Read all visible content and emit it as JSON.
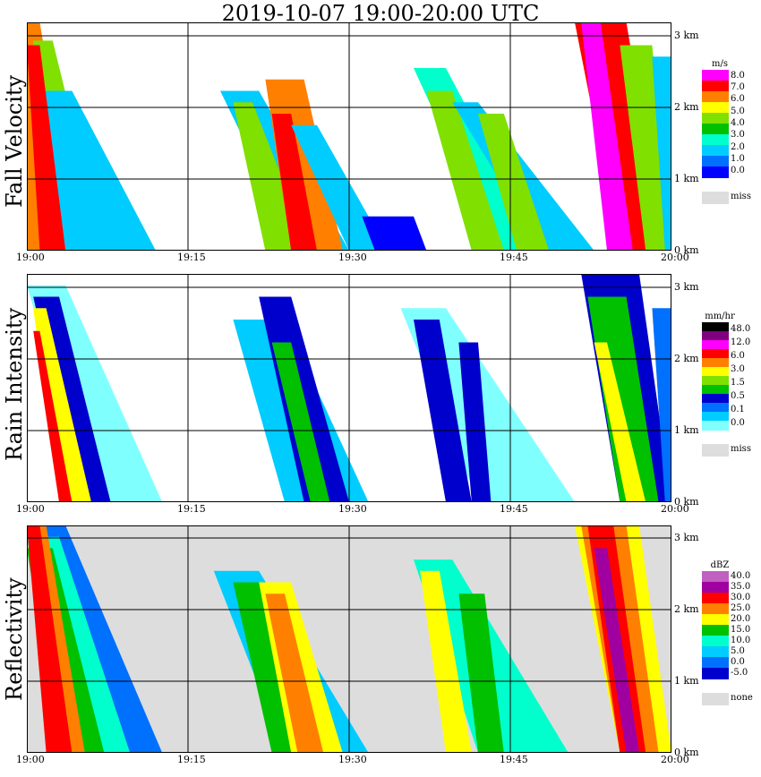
{
  "title": "2019-10-07   19:00-20:00 UTC",
  "chart_data": [
    {
      "type": "heatmap",
      "ylabel": "Fall Velocity",
      "x_ticks": [
        "19:00",
        "19:15",
        "19:30",
        "19:45",
        "20:00"
      ],
      "y_ticks": [
        "0 km",
        "1 km",
        "2 km",
        "3 km"
      ],
      "legend": {
        "unit": "m/s",
        "labels": [
          "8.0",
          "7.0",
          "6.0",
          "5.0",
          "4.0",
          "3.0",
          "2.0",
          "1.0",
          "0.0"
        ],
        "colors": [
          "#ff00ff",
          "#ff0000",
          "#ff8000",
          "#ffff00",
          "#80e000",
          "#00c000",
          "#00ffcc",
          "#00ccff",
          "#0070ff",
          "#0000ff"
        ],
        "miss_label": "miss"
      },
      "background": "#ffffff"
    },
    {
      "type": "heatmap",
      "ylabel": "Rain Intensity",
      "x_ticks": [
        "19:00",
        "19:15",
        "19:30",
        "19:45",
        "20:00"
      ],
      "y_ticks": [
        "0 km",
        "1 km",
        "2 km",
        "3 km"
      ],
      "legend": {
        "unit": "mm/hr",
        "labels": [
          "48.0",
          "12.0",
          "6.0",
          "3.0",
          "1.5",
          "0.5",
          "0.1",
          "0.0"
        ],
        "colors": [
          "#000000",
          "#800080",
          "#ff00ff",
          "#ff0000",
          "#ff8000",
          "#ffff00",
          "#80e000",
          "#00c000",
          "#0000cc",
          "#0070ff",
          "#00ccff",
          "#80ffff"
        ],
        "miss_label": "miss"
      },
      "background": "#ffffff"
    },
    {
      "type": "heatmap",
      "ylabel": "Reflectivity",
      "x_ticks": [
        "19:00",
        "19:15",
        "19:30",
        "19:45",
        "20:00"
      ],
      "y_ticks": [
        "0 km",
        "1 km",
        "2 km",
        "3 km"
      ],
      "legend": {
        "unit": "dBZ",
        "labels": [
          "40.0",
          "35.0",
          "30.0",
          "25.0",
          "20.0",
          "15.0",
          "10.0",
          "5.0",
          "0.0",
          "-5.0"
        ],
        "colors": [
          "#c060c0",
          "#a000a0",
          "#ff0000",
          "#ff8000",
          "#ffff00",
          "#00c000",
          "#00ffcc",
          "#00ccff",
          "#0070ff",
          "#0000cc"
        ],
        "miss_label": "none"
      },
      "background": "#dddddd"
    }
  ]
}
